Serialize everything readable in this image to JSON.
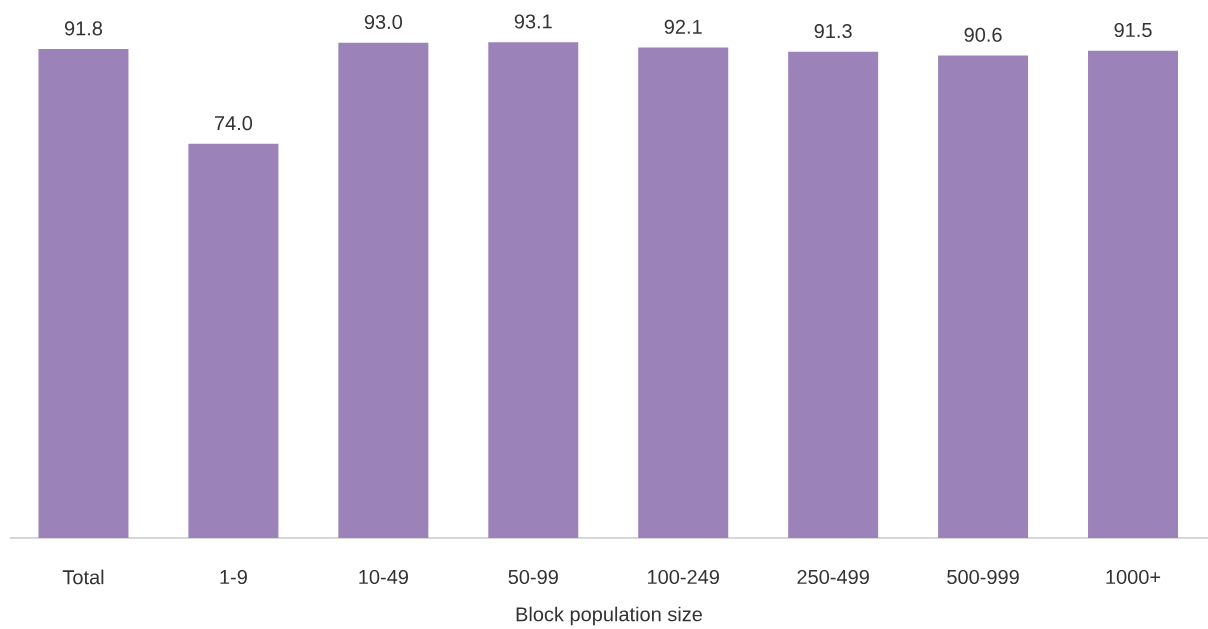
{
  "chart_data": {
    "type": "bar",
    "xlabel": "Block population size",
    "categories": [
      "Total",
      "1-9",
      "10-49",
      "50-99",
      "100-249",
      "250-499",
      "500-999",
      "1000+"
    ],
    "values": [
      91.8,
      74.0,
      93.0,
      93.1,
      92.1,
      91.3,
      90.6,
      91.5
    ],
    "value_labels": [
      "91.8",
      "74.0",
      "93.0",
      "93.1",
      "92.1",
      "91.3",
      "90.6",
      "91.5"
    ],
    "color": "#9b83b9"
  }
}
